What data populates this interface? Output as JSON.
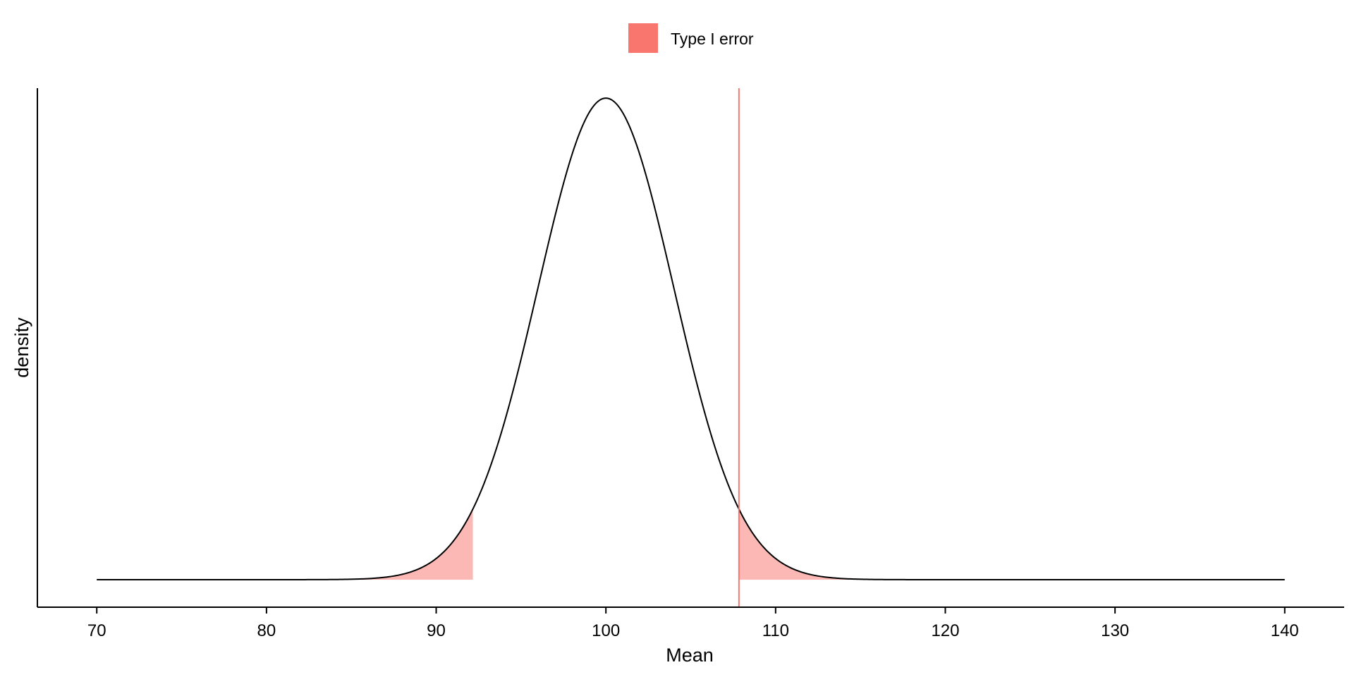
{
  "chart_data": {
    "type": "area",
    "xlabel": "Mean",
    "ylabel": "density",
    "xlim": [
      66.5,
      143.5
    ],
    "ylim": [
      -0.0057,
      0.1018
    ],
    "x_ticks": [
      70,
      80,
      90,
      100,
      110,
      120,
      130,
      140
    ],
    "grid": false,
    "legend": {
      "placement": "top",
      "entries": [
        {
          "label": "Type I error",
          "color": "#F8766D"
        }
      ]
    },
    "distribution": {
      "mean": 100,
      "sd": 4,
      "x_range": [
        70,
        140
      ]
    },
    "critical_values": {
      "lower": 92.16,
      "upper": 107.84
    },
    "shaded_regions": [
      {
        "name": "Type I error",
        "from": 70,
        "to": 92.16
      },
      {
        "name": "Type I error",
        "from": 107.84,
        "to": 140
      }
    ],
    "critical_line": {
      "x": 107.84
    },
    "colors": {
      "curve": "#000000",
      "fill": "#FBB8B4",
      "line": "#F8766D",
      "legend_key": "#F8766D"
    }
  }
}
